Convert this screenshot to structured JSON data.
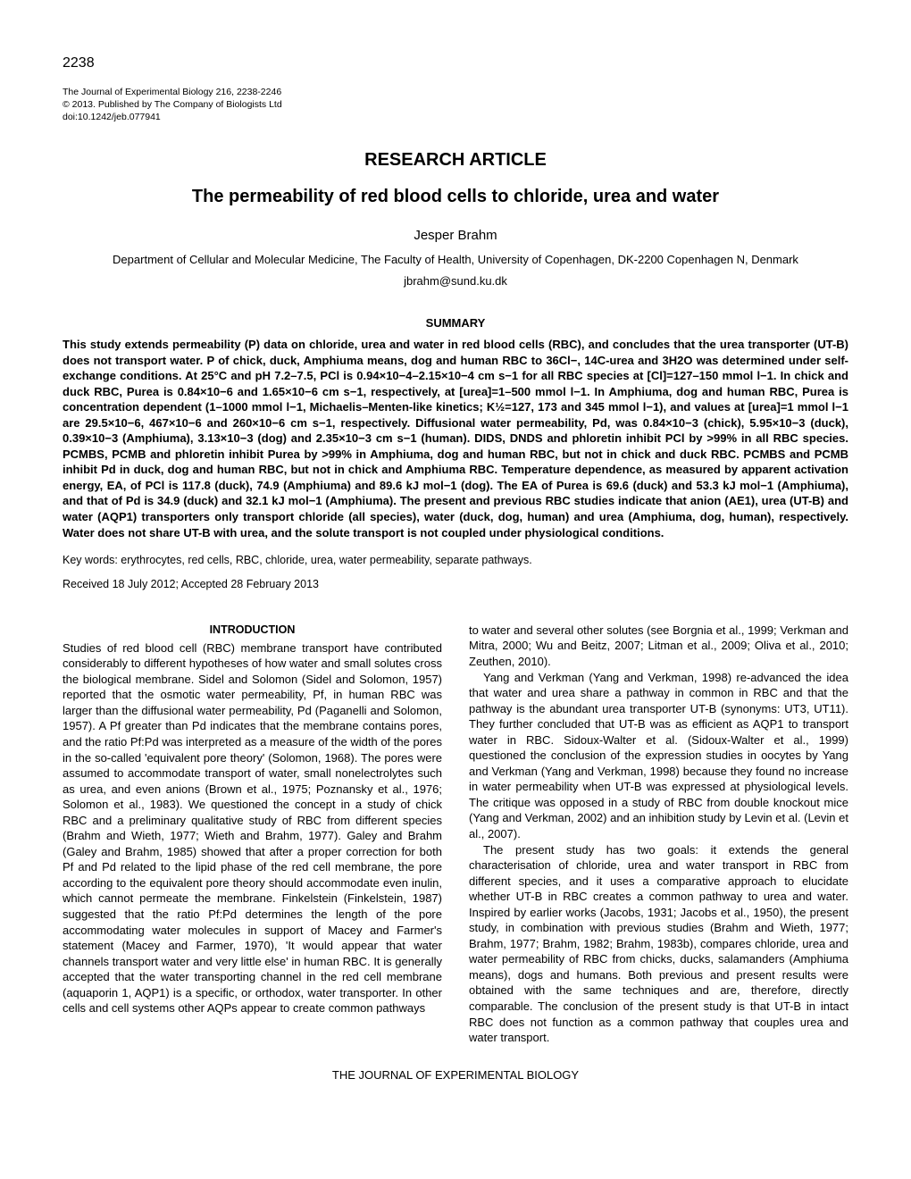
{
  "pageNumber": "2238",
  "journal": {
    "line1": "The Journal of Experimental Biology 216, 2238-2246",
    "line2": "© 2013. Published by The Company of Biologists Ltd",
    "line3": "doi:10.1242/jeb.077941"
  },
  "articleType": "RESEARCH ARTICLE",
  "title": "The permeability of red blood cells to chloride, urea and water",
  "author": "Jesper Brahm",
  "affiliation": "Department of Cellular and Molecular Medicine, The Faculty of Health, University of Copenhagen, DK-2200 Copenhagen N, Denmark",
  "email": "jbrahm@sund.ku.dk",
  "summaryHeading": "SUMMARY",
  "summary": "This study extends permeability (P) data on chloride, urea and water in red blood cells (RBC), and concludes that the urea transporter (UT-B) does not transport water. P of chick, duck, Amphiuma means, dog and human RBC to 36Cl−, 14C-urea and 3H2O was determined under self-exchange conditions. At 25°C and pH 7.2–7.5, PCl is 0.94×10−4–2.15×10−4 cm s−1 for all RBC species at [Cl]=127–150 mmol l−1. In chick and duck RBC, Purea is 0.84×10−6 and 1.65×10−6 cm s−1, respectively, at [urea]=1–500 mmol l−1. In Amphiuma, dog and human RBC, Purea is concentration dependent (1–1000 mmol l−1, Michaelis–Menten-like kinetics; K½=127, 173 and 345 mmol l−1), and values at [urea]=1 mmol l−1 are 29.5×10−6, 467×10−6 and 260×10−6 cm s−1, respectively. Diffusional water permeability, Pd, was 0.84×10−3 (chick), 5.95×10−3 (duck), 0.39×10−3 (Amphiuma), 3.13×10−3 (dog) and 2.35×10−3 cm s−1 (human). DIDS, DNDS and phloretin inhibit PCl by >99% in all RBC species. PCMBS, PCMB and phloretin inhibit Purea by >99% in Amphiuma, dog and human RBC, but not in chick and duck RBC. PCMBS and PCMB inhibit Pd in duck, dog and human RBC, but not in chick and Amphiuma RBC. Temperature dependence, as measured by apparent activation energy, EA, of PCl is 117.8 (duck), 74.9 (Amphiuma) and 89.6 kJ mol−1 (dog). The EA of Purea is 69.6 (duck) and 53.3 kJ mol−1 (Amphiuma), and that of Pd is 34.9 (duck) and 32.1 kJ mol−1 (Amphiuma). The present and previous RBC studies indicate that anion (AE1), urea (UT-B) and water (AQP1) transporters only transport chloride (all species), water (duck, dog, human) and urea (Amphiuma, dog, human), respectively. Water does not share UT-B with urea, and the solute transport is not coupled under physiological conditions.",
  "keywords": "Key words: erythrocytes, red cells, RBC, chloride, urea, water permeability, separate pathways.",
  "received": "Received 18 July 2012; Accepted 28 February 2013",
  "introHeading": "INTRODUCTION",
  "leftCol": {
    "p1": "Studies of red blood cell (RBC) membrane transport have contributed considerably to different hypotheses of how water and small solutes cross the biological membrane. Sidel and Solomon (Sidel and Solomon, 1957) reported that the osmotic water permeability, Pf, in human RBC was larger than the diffusional water permeability, Pd (Paganelli and Solomon, 1957). A Pf greater than Pd indicates that the membrane contains pores, and the ratio Pf:Pd was interpreted as a measure of the width of the pores in the so-called 'equivalent pore theory' (Solomon, 1968). The pores were assumed to accommodate transport of water, small nonelectrolytes such as urea, and even anions (Brown et al., 1975; Poznansky et al., 1976; Solomon et al., 1983). We questioned the concept in a study of chick RBC and a preliminary qualitative study of RBC from different species (Brahm and Wieth, 1977; Wieth and Brahm, 1977). Galey and Brahm (Galey and Brahm, 1985) showed that after a proper correction for both Pf and Pd related to the lipid phase of the red cell membrane, the pore according to the equivalent pore theory should accommodate even inulin, which cannot permeate the membrane. Finkelstein (Finkelstein, 1987) suggested that the ratio Pf:Pd determines the length of the pore accommodating water molecules in support of Macey and Farmer's statement (Macey and Farmer, 1970), 'It would appear that water channels transport water and very little else' in human RBC. It is generally accepted that the water transporting channel in the red cell membrane (aquaporin 1, AQP1) is a specific, or orthodox, water transporter. In other cells and cell systems other AQPs appear to create common pathways"
  },
  "rightCol": {
    "p1": "to water and several other solutes (see Borgnia et al., 1999; Verkman and Mitra, 2000; Wu and Beitz, 2007; Litman et al., 2009; Oliva et al., 2010; Zeuthen, 2010).",
    "p2": "Yang and Verkman (Yang and Verkman, 1998) re-advanced the idea that water and urea share a pathway in common in RBC and that the pathway is the abundant urea transporter UT-B (synonyms: UT3, UT11). They further concluded that UT-B was as efficient as AQP1 to transport water in RBC. Sidoux-Walter et al. (Sidoux-Walter et al., 1999) questioned the conclusion of the expression studies in oocytes by Yang and Verkman (Yang and Verkman, 1998) because they found no increase in water permeability when UT-B was expressed at physiological levels. The critique was opposed in a study of RBC from double knockout mice (Yang and Verkman, 2002) and an inhibition study by Levin et al. (Levin et al., 2007).",
    "p3": "The present study has two goals: it extends the general characterisation of chloride, urea and water transport in RBC from different species, and it uses a comparative approach to elucidate whether UT-B in RBC creates a common pathway to urea and water. Inspired by earlier works (Jacobs, 1931; Jacobs et al., 1950), the present study, in combination with previous studies (Brahm and Wieth, 1977; Brahm, 1977; Brahm, 1982; Brahm, 1983b), compares chloride, urea and water permeability of RBC from chicks, ducks, salamanders (Amphiuma means), dogs and humans. Both previous and present results were obtained with the same techniques and are, therefore, directly comparable. The conclusion of the present study is that UT-B in intact RBC does not function as a common pathway that couples urea and water transport."
  },
  "footer": "THE JOURNAL OF EXPERIMENTAL BIOLOGY"
}
